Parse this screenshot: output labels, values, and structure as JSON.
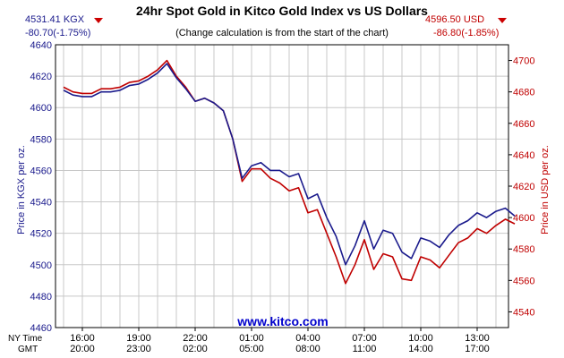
{
  "header": {
    "title": "24hr Spot Gold in Kitco Gold Index vs US Dollars",
    "subtitle": "(Change calculation is from the start of the chart)",
    "kgx_price": "4531.41 KGX",
    "kgx_change": "-80.70(-1.75%)",
    "usd_price": "4596.50 USD",
    "usd_change": "-86.80(-1.85%)"
  },
  "watermark": "www.kitco.com",
  "time_rows": {
    "ny_label": "NY Time",
    "gmt_label": "GMT"
  },
  "colors": {
    "kgx": "#1a1a8c",
    "usd": "#c00000",
    "grid": "#c8c8c8",
    "watermark": "#0000cc"
  },
  "chart_data": {
    "type": "line",
    "title": "24hr Spot Gold in Kitco Gold Index vs US Dollars",
    "ylabel_left": "Price in KGX per oz.",
    "ylabel_right": "Price in USD per oz.",
    "x_ticks_ny": [
      "16:00",
      "19:00",
      "22:00",
      "01:00",
      "04:00",
      "07:00",
      "10:00",
      "13:00"
    ],
    "x_ticks_gmt": [
      "20:00",
      "23:00",
      "02:00",
      "05:00",
      "08:00",
      "11:00",
      "14:00",
      "17:00"
    ],
    "ylim_left": [
      4460,
      4640
    ],
    "yticks_left": [
      "4640",
      "4620",
      "4600",
      "4580",
      "4560",
      "4540",
      "4520",
      "4500",
      "4480",
      "4460"
    ],
    "ylim_right": [
      4530,
      4710
    ],
    "yticks_right": [
      "4700",
      "4680",
      "4660",
      "4640",
      "4620",
      "4600",
      "4580",
      "4560",
      "4540"
    ],
    "grid": true,
    "x_hours": [
      0,
      0.5,
      1,
      1.5,
      2,
      2.5,
      3,
      3.5,
      4,
      4.5,
      5,
      5.5,
      6,
      6.5,
      7,
      7.5,
      8,
      8.5,
      9,
      9.5,
      10,
      10.5,
      11,
      11.5,
      12,
      12.5,
      13,
      13.5,
      14,
      14.5,
      15,
      15.5,
      16,
      16.5,
      17,
      17.5,
      18,
      18.5,
      19,
      19.5,
      20,
      20.5,
      21,
      21.5,
      22,
      22.5,
      23,
      23.5,
      24
    ],
    "series": [
      {
        "name": "KGX",
        "color": "#1a1a8c",
        "axis": "left",
        "values": [
          4611,
          4608,
          4607,
          4607,
          4610,
          4610,
          4611,
          4614,
          4615,
          4618,
          4622,
          4628,
          4619,
          4612,
          4604,
          4606,
          4603,
          4598,
          4580,
          4555,
          4563,
          4565,
          4560,
          4560,
          4556,
          4558,
          4542,
          4545,
          4530,
          4518,
          4500,
          4512,
          4528,
          4510,
          4522,
          4520,
          4508,
          4504,
          4517,
          4515,
          4511,
          4519,
          4525,
          4528,
          4533,
          4530,
          4534,
          4536,
          4531
        ]
      },
      {
        "name": "USD",
        "color": "#c00000",
        "axis": "right",
        "values": [
          4683,
          4680,
          4679,
          4679,
          4682,
          4682,
          4683,
          4686,
          4687,
          4690,
          4694,
          4700,
          4690,
          4683,
          4674,
          4676,
          4673,
          4668,
          4650,
          4623,
          4631,
          4631,
          4625,
          4622,
          4617,
          4619,
          4603,
          4605,
          4590,
          4575,
          4558,
          4570,
          4586,
          4567,
          4577,
          4575,
          4561,
          4560,
          4575,
          4573,
          4568,
          4576,
          4584,
          4587,
          4593,
          4590,
          4595,
          4599,
          4596
        ]
      }
    ]
  }
}
